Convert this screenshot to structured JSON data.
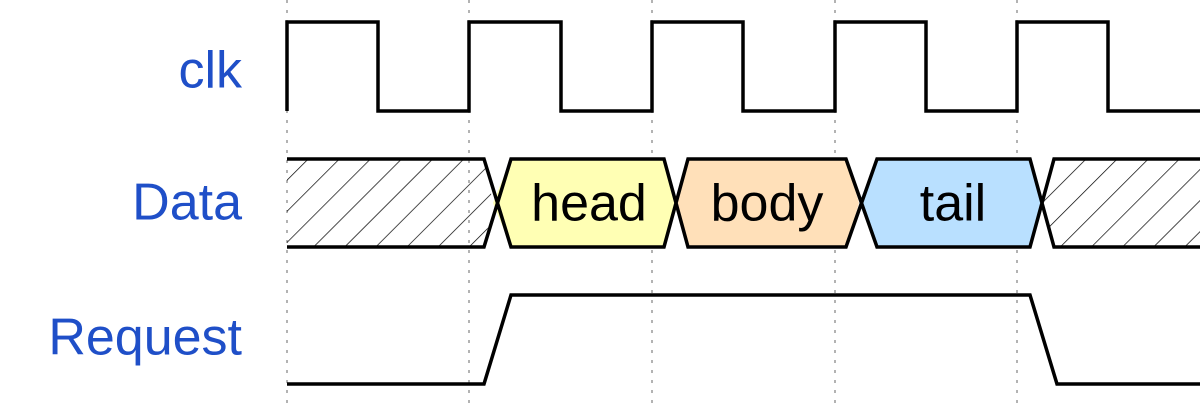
{
  "diagram": {
    "type": "timing-diagram",
    "signals": [
      {
        "id": "clk",
        "label": "clk",
        "wave": "clock",
        "periods": 5,
        "starts": "high"
      },
      {
        "id": "data",
        "label": "Data",
        "wave": "bus",
        "segments": [
          {
            "kind": "undefined",
            "from_cycle": 0,
            "to_cycle": 1
          },
          {
            "kind": "value",
            "label": "head",
            "color": "#ffffb4",
            "from_cycle": 1,
            "to_cycle": 2
          },
          {
            "kind": "value",
            "label": "body",
            "color": "#ffe0b9",
            "from_cycle": 2,
            "to_cycle": 3
          },
          {
            "kind": "value",
            "label": "tail",
            "color": "#b9e0ff",
            "from_cycle": 3,
            "to_cycle": 4
          },
          {
            "kind": "undefined",
            "from_cycle": 4,
            "to_cycle": 5
          }
        ]
      },
      {
        "id": "request",
        "label": "Request",
        "wave": "level",
        "levels": [
          "low",
          "high",
          "high",
          "high",
          "low"
        ]
      }
    ],
    "label_color": "#1f4fc8",
    "line_color": "#000000",
    "grid_color": "#9a9a9a"
  }
}
